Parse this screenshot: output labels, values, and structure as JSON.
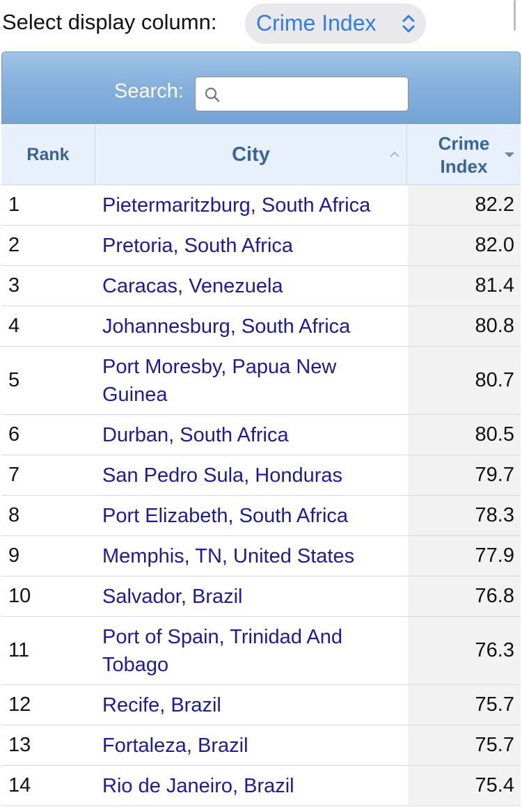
{
  "selector": {
    "label": "Select display column:",
    "value": "Crime Index",
    "accent_color": "#2f7cf0"
  },
  "search": {
    "label": "Search:",
    "value": "",
    "icon": "search-icon"
  },
  "table": {
    "columns": {
      "rank": "Rank",
      "city": "City",
      "crime_line1": "Crime",
      "crime_line2": "Index"
    },
    "rows": [
      {
        "rank": "1",
        "city": "Pietermaritzburg, South Africa",
        "value": "82.2"
      },
      {
        "rank": "2",
        "city": "Pretoria, South Africa",
        "value": "82.0"
      },
      {
        "rank": "3",
        "city": "Caracas, Venezuela",
        "value": "81.4"
      },
      {
        "rank": "4",
        "city": "Johannesburg, South Africa",
        "value": "80.8"
      },
      {
        "rank": "5",
        "city": "Port Moresby, Papua New Guinea",
        "value": "80.7"
      },
      {
        "rank": "6",
        "city": "Durban, South Africa",
        "value": "80.5"
      },
      {
        "rank": "7",
        "city": "San Pedro Sula, Honduras",
        "value": "79.7"
      },
      {
        "rank": "8",
        "city": "Port Elizabeth, South Africa",
        "value": "78.3"
      },
      {
        "rank": "9",
        "city": "Memphis, TN, United States",
        "value": "77.9"
      },
      {
        "rank": "10",
        "city": "Salvador, Brazil",
        "value": "76.8"
      },
      {
        "rank": "11",
        "city": "Port of Spain, Trinidad And Tobago",
        "value": "76.3"
      },
      {
        "rank": "12",
        "city": "Recife, Brazil",
        "value": "75.7"
      },
      {
        "rank": "13",
        "city": "Fortaleza, Brazil",
        "value": "75.7"
      },
      {
        "rank": "14",
        "city": "Rio de Janeiro, Brazil",
        "value": "75.4"
      }
    ]
  }
}
